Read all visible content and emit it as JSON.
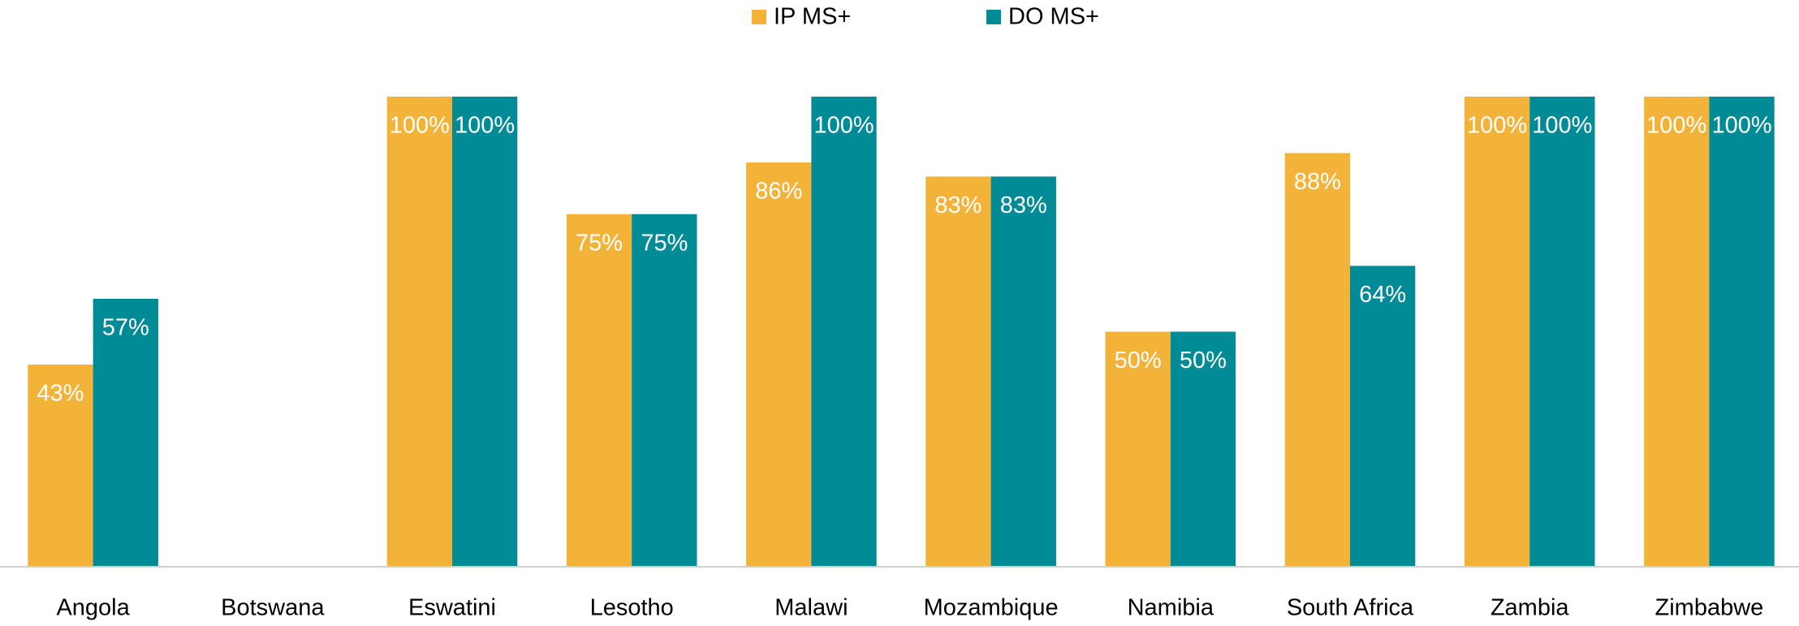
{
  "chart_data": {
    "type": "bar",
    "categories": [
      "Angola",
      "Botswana",
      "Eswatini",
      "Lesotho",
      "Malawi",
      "Mozambique",
      "Namibia",
      "South Africa",
      "Zambia",
      "Zimbabwe"
    ],
    "series": [
      {
        "name": "IP MS+",
        "color": "#f3b338",
        "values": [
          43,
          null,
          100,
          75,
          86,
          83,
          50,
          88,
          100,
          100
        ],
        "value_labels": [
          "43%",
          null,
          "100%",
          "75%",
          "86%",
          "83%",
          "50%",
          "88%",
          "100%",
          "100%"
        ]
      },
      {
        "name": "DO MS+",
        "color": "#008b96",
        "values": [
          57,
          null,
          100,
          75,
          100,
          83,
          50,
          64,
          100,
          100
        ],
        "value_labels": [
          "57%",
          null,
          "100%",
          "75%",
          "100%",
          "83%",
          "50%",
          "64%",
          "100%",
          "100%"
        ]
      }
    ],
    "ylim": [
      0,
      100
    ],
    "legend": "top",
    "value_label_color": "#ffffff"
  }
}
